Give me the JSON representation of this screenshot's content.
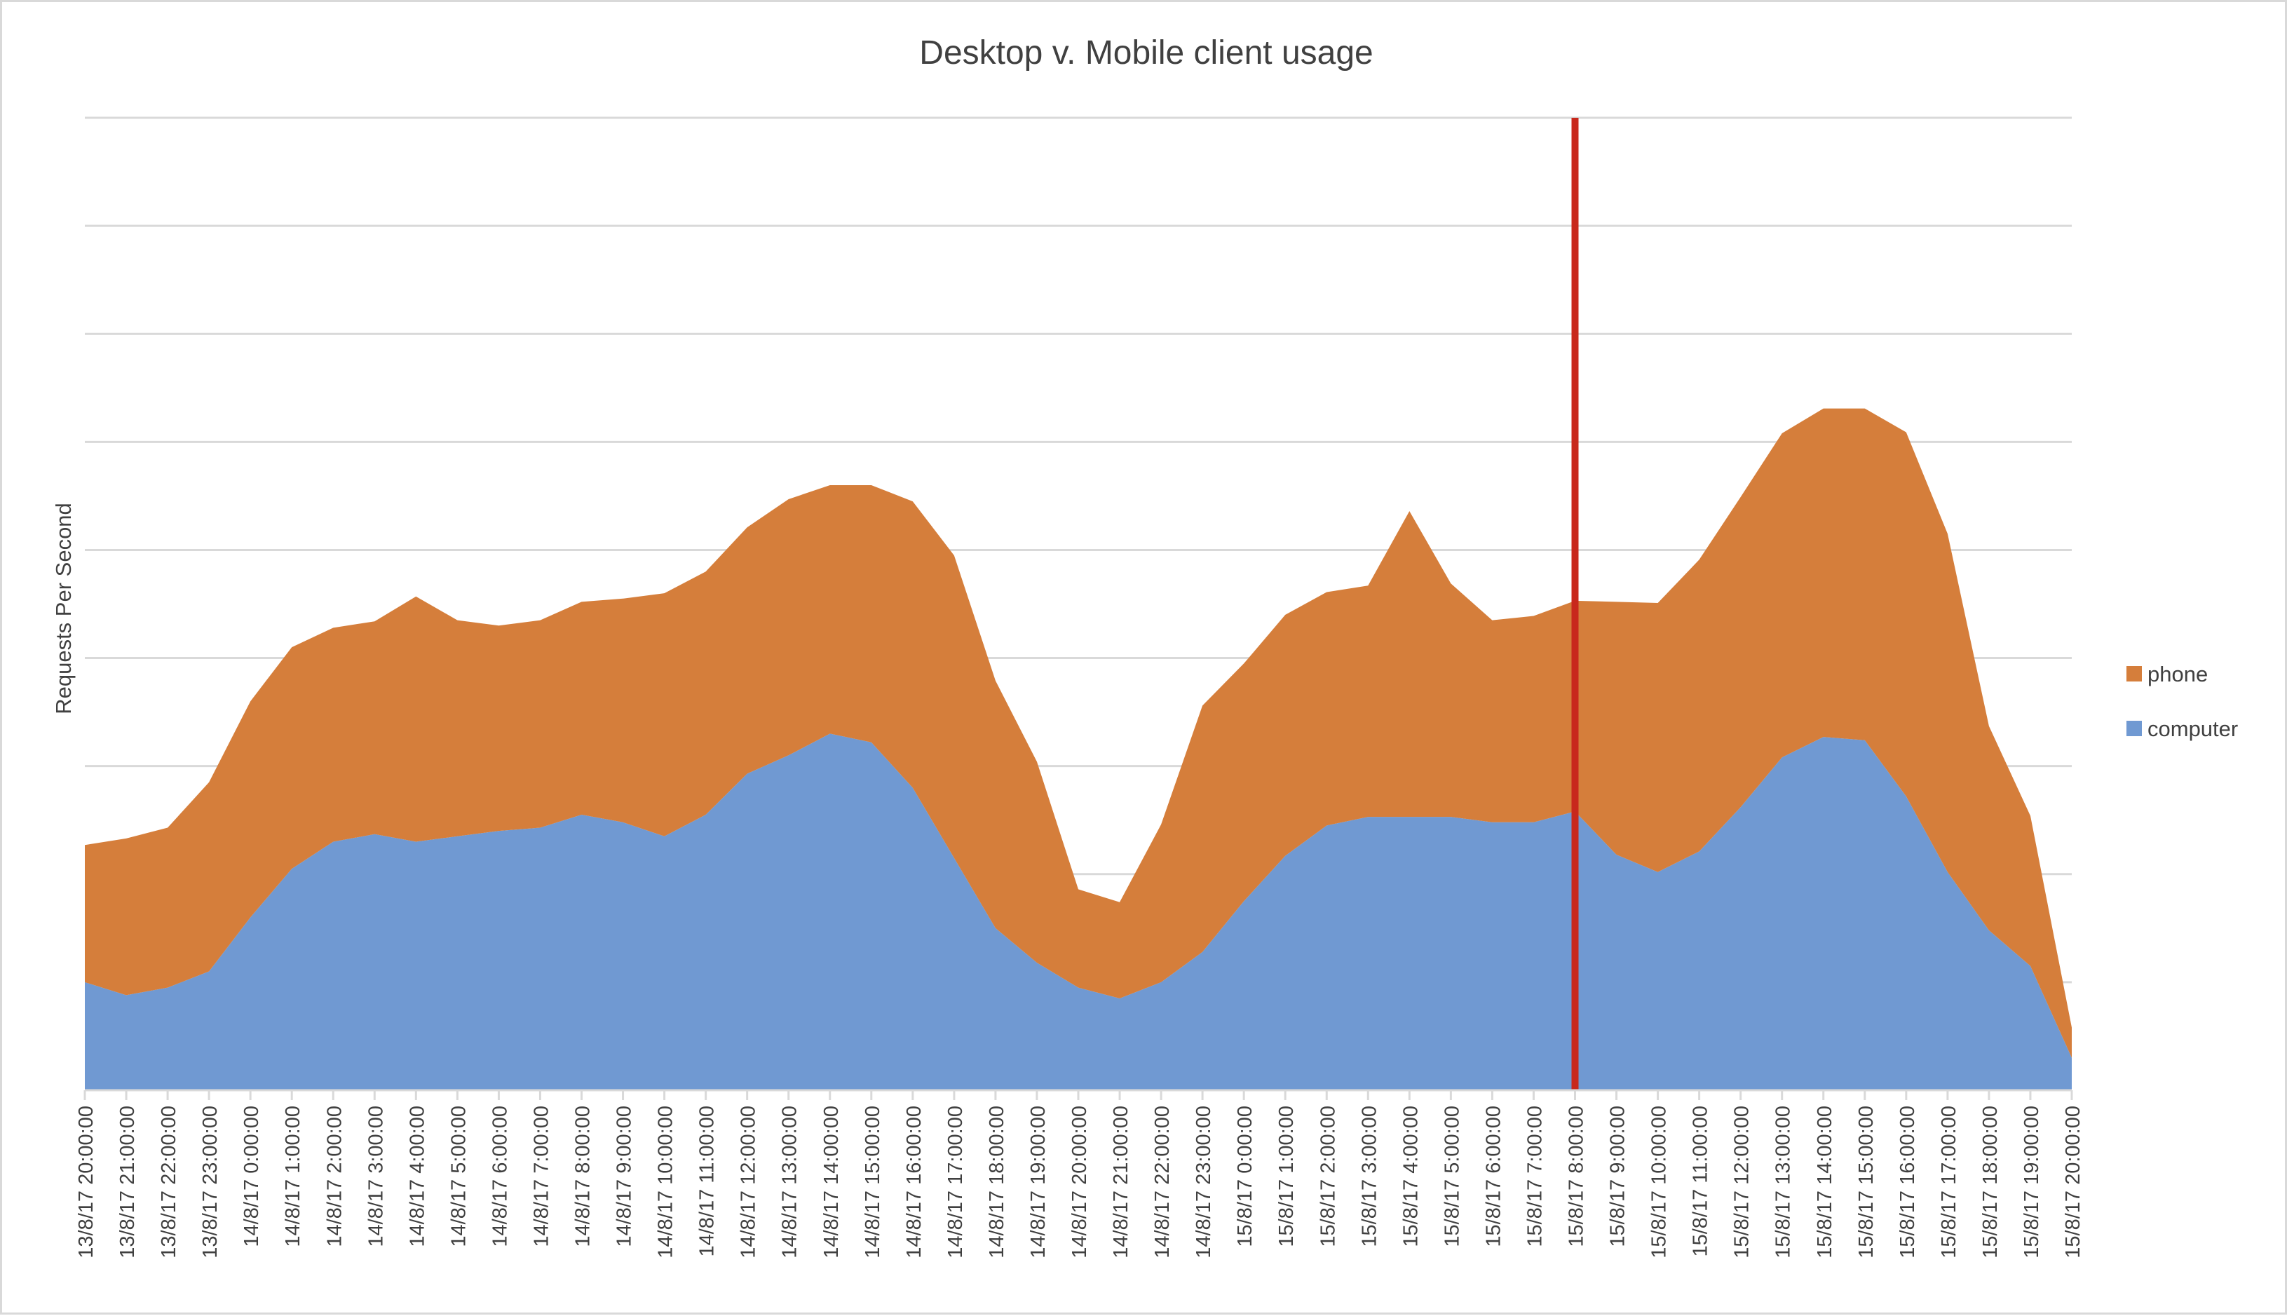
{
  "chart_data": {
    "type": "area",
    "stacked": true,
    "title": "Desktop v. Mobile client usage",
    "xlabel": "",
    "ylabel": "Requests Per Second",
    "ylim": [
      0,
      9
    ],
    "y_ticks_labeled": false,
    "grid": true,
    "legend_position": "right",
    "categories": [
      "13/8/17 20:00:00",
      "13/8/17 21:00:00",
      "13/8/17 22:00:00",
      "13/8/17 23:00:00",
      "14/8/17 0:00:00",
      "14/8/17 1:00:00",
      "14/8/17 2:00:00",
      "14/8/17 3:00:00",
      "14/8/17 4:00:00",
      "14/8/17 5:00:00",
      "14/8/17 6:00:00",
      "14/8/17 7:00:00",
      "14/8/17 8:00:00",
      "14/8/17 9:00:00",
      "14/8/17 10:00:00",
      "14/8/17 11:00:00",
      "14/8/17 12:00:00",
      "14/8/17 13:00:00",
      "14/8/17 14:00:00",
      "14/8/17 15:00:00",
      "14/8/17 16:00:00",
      "14/8/17 17:00:00",
      "14/8/17 18:00:00",
      "14/8/17 19:00:00",
      "14/8/17 20:00:00",
      "14/8/17 21:00:00",
      "14/8/17 22:00:00",
      "14/8/17 23:00:00",
      "15/8/17 0:00:00",
      "15/8/17 1:00:00",
      "15/8/17 2:00:00",
      "15/8/17 3:00:00",
      "15/8/17 4:00:00",
      "15/8/17 5:00:00",
      "15/8/17 6:00:00",
      "15/8/17 7:00:00",
      "15/8/17 8:00:00",
      "15/8/17 9:00:00",
      "15/8/17 10:00:00",
      "15/8/17 11:00:00",
      "15/8/17 12:00:00",
      "15/8/17 13:00:00",
      "15/8/17 14:00:00",
      "15/8/17 15:00:00",
      "15/8/17 16:00:00",
      "15/8/17 17:00:00",
      "15/8/17 18:00:00",
      "15/8/17 19:00:00",
      "15/8/17 20:00:00"
    ],
    "series": [
      {
        "name": "computer",
        "color": "#7099d2",
        "values": [
          1.0,
          0.88,
          0.95,
          1.1,
          1.6,
          2.05,
          2.3,
          2.37,
          2.3,
          2.35,
          2.4,
          2.43,
          2.55,
          2.48,
          2.35,
          2.55,
          2.93,
          3.1,
          3.3,
          3.22,
          2.8,
          2.15,
          1.5,
          1.18,
          0.95,
          0.85,
          1.0,
          1.28,
          1.75,
          2.17,
          2.45,
          2.53,
          2.53,
          2.53,
          2.48,
          2.48,
          2.58,
          2.18,
          2.02,
          2.21,
          2.62,
          3.08,
          3.27,
          3.24,
          2.72,
          2.02,
          1.48,
          1.15,
          0.3
        ]
      },
      {
        "name": "phone",
        "color": "#d57e3b",
        "values": [
          1.27,
          1.45,
          1.48,
          1.75,
          2.0,
          2.05,
          1.98,
          1.97,
          2.27,
          2.0,
          1.9,
          1.92,
          1.97,
          2.07,
          2.25,
          2.25,
          2.28,
          2.37,
          2.3,
          2.38,
          2.65,
          2.8,
          2.29,
          1.86,
          0.91,
          0.89,
          1.46,
          2.28,
          2.2,
          2.23,
          2.16,
          2.14,
          2.83,
          2.16,
          1.87,
          1.91,
          1.95,
          2.34,
          2.49,
          2.7,
          2.87,
          3.0,
          3.04,
          3.07,
          3.37,
          3.13,
          1.89,
          1.39,
          0.28
        ]
      }
    ],
    "annotations": [
      {
        "type": "vertical-line",
        "at": "15/8/17 8:00:00",
        "color": "#c8281c"
      }
    ]
  }
}
